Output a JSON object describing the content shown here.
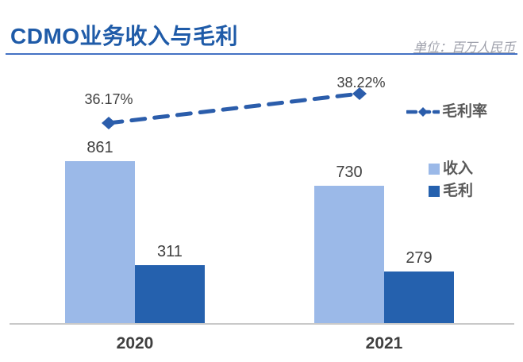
{
  "header": {
    "title": "CDMO业务收入与毛利",
    "unit_note": "单位：百万人民币"
  },
  "colors": {
    "title_blue": "#1F5BA8",
    "underline_blue": "#4472C4",
    "revenue_light_blue": "#9BB9E8",
    "profit_dark_blue": "#2561AE",
    "margin_line_blue": "#2B5DAB",
    "label_gray": "#404040",
    "legend_text_gray": "#595959",
    "axis_gray": "#C9C9C9"
  },
  "chart_data": {
    "type": "bar",
    "title": "CDMO业务收入与毛利",
    "unit": "百万人民币",
    "categories": [
      "2020",
      "2021"
    ],
    "series": [
      {
        "name": "收入",
        "type": "bar",
        "values": [
          861,
          730
        ],
        "color": "#9BB9E8"
      },
      {
        "name": "毛利",
        "type": "bar",
        "values": [
          311,
          279
        ],
        "color": "#2561AE"
      },
      {
        "name": "毛利率",
        "type": "line",
        "values": [
          36.17,
          38.22
        ],
        "labels": [
          "36.17%",
          "38.22%"
        ],
        "color": "#2B5DAB",
        "style": "dashed-with-diamond-markers",
        "axis": "secondary"
      }
    ],
    "xlabel": "",
    "ylabel": "",
    "ylim": [
      0,
      950
    ],
    "grid": false,
    "value_labels": true,
    "legend_position": "right"
  }
}
